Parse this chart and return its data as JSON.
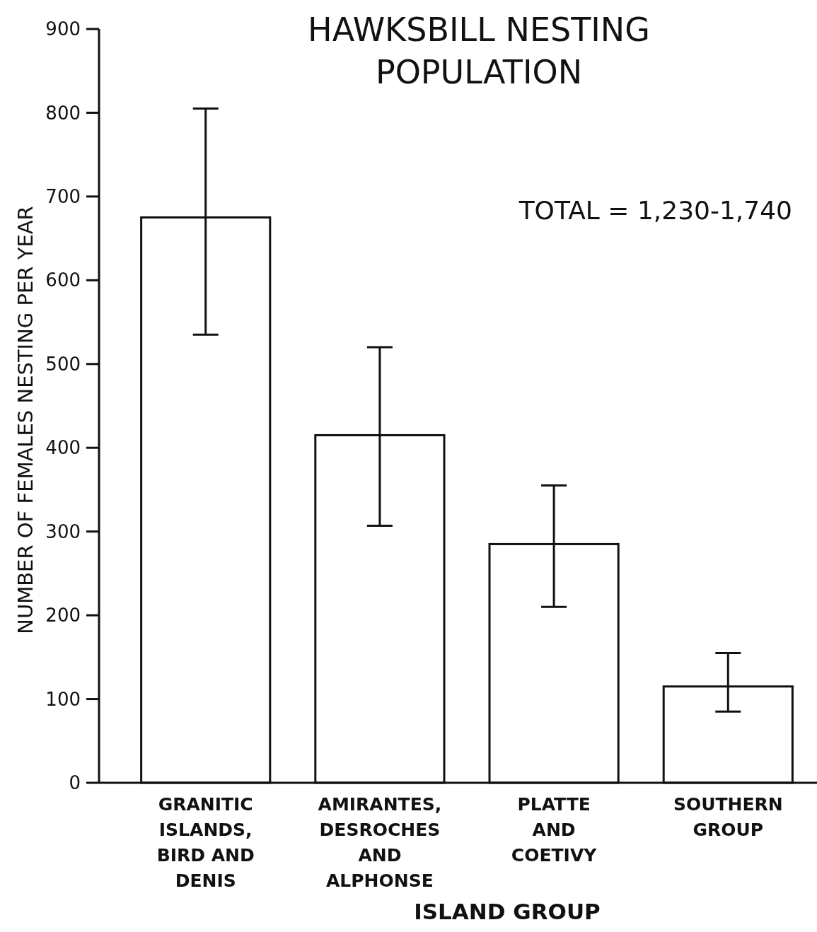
{
  "chart_data": {
    "type": "bar",
    "title": "HAWKSBILL NESTING\nPOPULATION",
    "xlabel": "ISLAND GROUP",
    "ylabel": "NUMBER OF FEMALES NESTING PER YEAR",
    "categories": [
      "GRANITIC\nISLANDS,\nBIRD AND\nDENIS",
      "AMIRANTES,\nDESROCHES\nAND\nALPHONSE",
      "PLATTE\nAND\nCOETIVY",
      "SOUTHERN\nGROUP"
    ],
    "values": [
      675,
      415,
      285,
      115
    ],
    "errors": [
      [
        535,
        805
      ],
      [
        307,
        520
      ],
      [
        210,
        355
      ],
      [
        85,
        155
      ]
    ],
    "color": "#ffffff",
    "ylim": [
      0,
      900
    ],
    "yticks": [
      0,
      100,
      200,
      300,
      400,
      500,
      600,
      700,
      800,
      900
    ],
    "grid": false,
    "annotations": [
      "TOTAL = 1,230-1,740"
    ]
  }
}
